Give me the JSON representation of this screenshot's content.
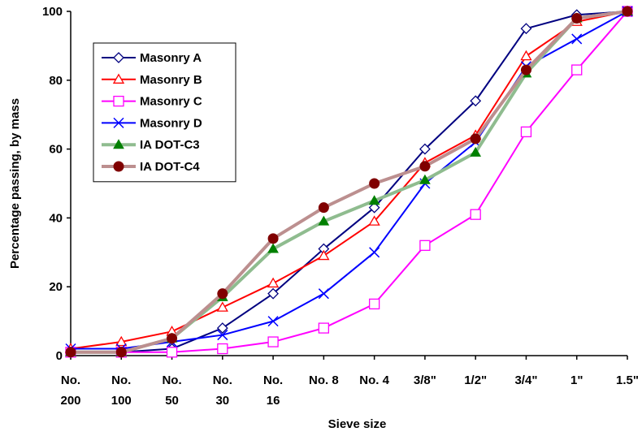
{
  "chart_data": {
    "type": "line",
    "xlabel": "Sieve size",
    "ylabel": "Percentage passing, by mass",
    "ylim": [
      0,
      100
    ],
    "yticks": [
      "0",
      "20",
      "40",
      "60",
      "80",
      "100"
    ],
    "categories": [
      [
        "No.",
        "200"
      ],
      [
        "No.",
        "100"
      ],
      [
        "No.",
        "50"
      ],
      [
        "No.",
        "30"
      ],
      [
        "No.",
        "16"
      ],
      [
        "No. 8"
      ],
      [
        "No. 4"
      ],
      [
        "3/8\""
      ],
      [
        "1/2\""
      ],
      [
        "3/4\""
      ],
      [
        "1\""
      ],
      [
        "1.5\""
      ]
    ],
    "grid": false,
    "legend_position": "top-left",
    "series": [
      {
        "name": "Masonry A",
        "color": "#000080",
        "marker": "diamond-open",
        "line_width": 2,
        "values": [
          1,
          1,
          2,
          8,
          18,
          31,
          43,
          60,
          74,
          95,
          99,
          100
        ]
      },
      {
        "name": "Masonry B",
        "color": "#ff0000",
        "marker": "triangle-open",
        "line_width": 2,
        "values": [
          2,
          4,
          7,
          14,
          21,
          29,
          39,
          56,
          64,
          87,
          97,
          100
        ]
      },
      {
        "name": "Masonry C",
        "color": "#ff00ff",
        "marker": "square-open",
        "line_width": 2,
        "values": [
          1,
          1,
          1,
          2,
          4,
          8,
          15,
          32,
          41,
          65,
          83,
          100
        ]
      },
      {
        "name": "Masonry D",
        "color": "#0000ff",
        "marker": "cross",
        "line_width": 2,
        "values": [
          2,
          2,
          4,
          6,
          10,
          18,
          30,
          50,
          62,
          84,
          92,
          100
        ]
      },
      {
        "name": "IA DOT-C3",
        "color": "#8fbc8f",
        "marker_color": "#008000",
        "marker": "triangle-filled",
        "line_width": 4,
        "values": [
          1,
          1,
          5,
          17,
          31,
          39,
          45,
          51,
          59,
          82,
          98,
          100
        ]
      },
      {
        "name": "IA DOT-C4",
        "color": "#bc8f8f",
        "marker_color": "#800000",
        "marker": "circle-filled",
        "line_width": 4,
        "values": [
          1,
          1,
          5,
          18,
          34,
          43,
          50,
          55,
          63,
          83,
          98,
          100
        ]
      }
    ]
  }
}
